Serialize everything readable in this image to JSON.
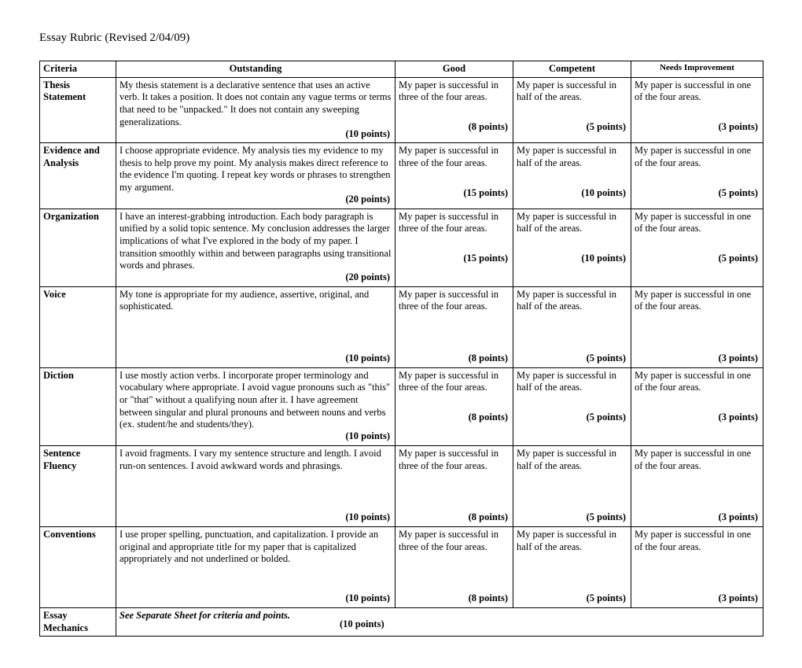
{
  "title": "Essay Rubric (Revised 2/04/09)",
  "headers": {
    "criteria": "Criteria",
    "outstanding": "Outstanding",
    "good": "Good",
    "competent": "Competent",
    "needs": "Needs Improvement"
  },
  "common": {
    "good_text": "My paper is successful in three of the four areas.",
    "competent_text": "My paper is successful in half of the areas.",
    "needs_text": "My paper is successful in one of the four areas."
  },
  "rows": [
    {
      "criteria": "Thesis Statement",
      "outstanding": "My thesis statement is a declarative sentence that uses an active verb. It takes a position. It does not contain any vague terms or terms that need to be \"unpacked.\" It does not contain any sweeping generalizations.",
      "pts": {
        "o": "(10 points)",
        "g": "(8 points)",
        "c": "(5 points)",
        "n": "(3 points)"
      },
      "tall": false
    },
    {
      "criteria": "Evidence and Analysis",
      "outstanding": "I choose appropriate evidence. My analysis ties my evidence to my thesis to help prove my point. My analysis makes direct reference to the evidence I'm quoting. I repeat key words or phrases to strengthen my argument.",
      "pts": {
        "o": "(20 points)",
        "g": "(15 points)",
        "c": "(10 points)",
        "n": "(5 points)"
      },
      "tall": false
    },
    {
      "criteria": "Organization",
      "outstanding": "I have an interest-grabbing introduction. Each body paragraph is unified by a solid topic sentence. My conclusion addresses the larger implications of what I've explored in the body of my paper. I transition smoothly within and between paragraphs using transitional words and phrases.",
      "pts": {
        "o": "(20 points)",
        "g": "(15 points)",
        "c": "(10 points)",
        "n": "(5 points)"
      },
      "tall": false
    },
    {
      "criteria": "Voice",
      "outstanding": "My tone is appropriate for my audience, assertive, original, and sophisticated.",
      "pts": {
        "o": "(10 points)",
        "g": "(8 points)",
        "c": "(5 points)",
        "n": "(3 points)"
      },
      "tall": true
    },
    {
      "criteria": "Diction",
      "outstanding": "I use mostly action verbs. I incorporate proper terminology and vocabulary where appropriate. I avoid vague pronouns such as \"this\" or \"that\" without a qualifying noun after it. I have agreement between singular and plural pronouns and between nouns and verbs (ex. student/he and students/they).",
      "pts": {
        "o": "(10 points)",
        "g": "(8 points)",
        "c": "(5 points)",
        "n": "(3 points)"
      },
      "tall": false
    },
    {
      "criteria": "Sentence Fluency",
      "outstanding": "I avoid fragments. I vary my sentence structure and length. I avoid run-on sentences. I avoid awkward words and phrasings.",
      "pts": {
        "o": "(10 points)",
        "g": "(8 points)",
        "c": "(5 points)",
        "n": "(3 points)"
      },
      "tall": true
    },
    {
      "criteria": "Conventions",
      "outstanding": "I use proper spelling, punctuation, and capitalization. I provide an original and appropriate title for my paper that is capitalized appropriately and not underlined or bolded.",
      "pts": {
        "o": "(10 points)",
        "g": "(8 points)",
        "c": "(5 points)",
        "n": "(3 points)"
      },
      "tall": true
    }
  ],
  "mechanics": {
    "criteria": "Essay Mechanics",
    "text": "See Separate Sheet for criteria and points.",
    "points": "(10 points)"
  },
  "colors": {
    "background": "#ffffff",
    "text": "#000000",
    "border": "#000000"
  },
  "typography": {
    "font_family": "Times New Roman",
    "title_fontsize": 15,
    "body_fontsize": 12.5
  }
}
